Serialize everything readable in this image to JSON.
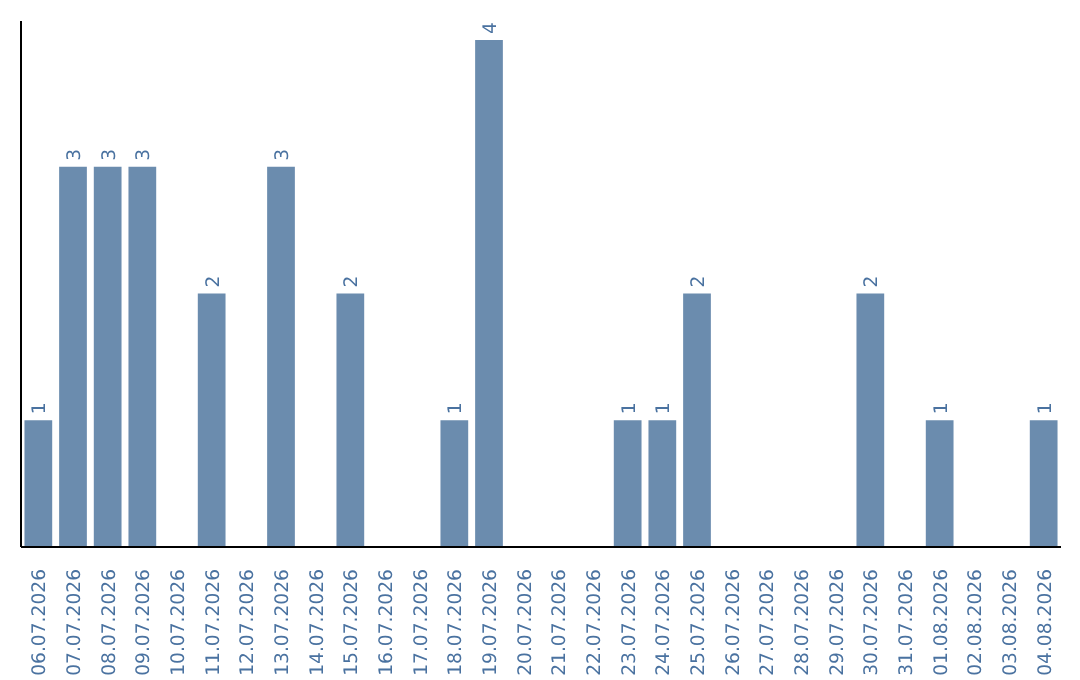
{
  "chart_data": {
    "type": "bar",
    "categories": [
      "06.07.2026",
      "07.07.2026",
      "08.07.2026",
      "09.07.2026",
      "10.07.2026",
      "11.07.2026",
      "12.07.2026",
      "13.07.2026",
      "14.07.2026",
      "15.07.2026",
      "16.07.2026",
      "17.07.2026",
      "18.07.2026",
      "19.07.2026",
      "20.07.2026",
      "21.07.2026",
      "22.07.2026",
      "23.07.2026",
      "24.07.2026",
      "25.07.2026",
      "26.07.2026",
      "27.07.2026",
      "28.07.2026",
      "29.07.2026",
      "30.07.2026",
      "31.07.2026",
      "01.08.2026",
      "02.08.2026",
      "03.08.2026",
      "04.08.2026"
    ],
    "values": [
      1,
      3,
      3,
      3,
      0,
      2,
      0,
      3,
      0,
      2,
      0,
      0,
      1,
      4,
      0,
      0,
      0,
      1,
      1,
      2,
      0,
      0,
      0,
      0,
      2,
      0,
      1,
      0,
      0,
      1
    ],
    "value_labels": [
      "1",
      "3",
      "3",
      "3",
      null,
      "2",
      null,
      "3",
      null,
      "2",
      null,
      null,
      "1",
      "4",
      null,
      null,
      null,
      "1",
      "1",
      "2",
      null,
      null,
      null,
      null,
      "2",
      null,
      "1",
      null,
      null,
      "1"
    ],
    "color": "#6b8cae",
    "ylim": [
      0,
      4.15
    ],
    "tick_labels": "x",
    "grid": false
  }
}
